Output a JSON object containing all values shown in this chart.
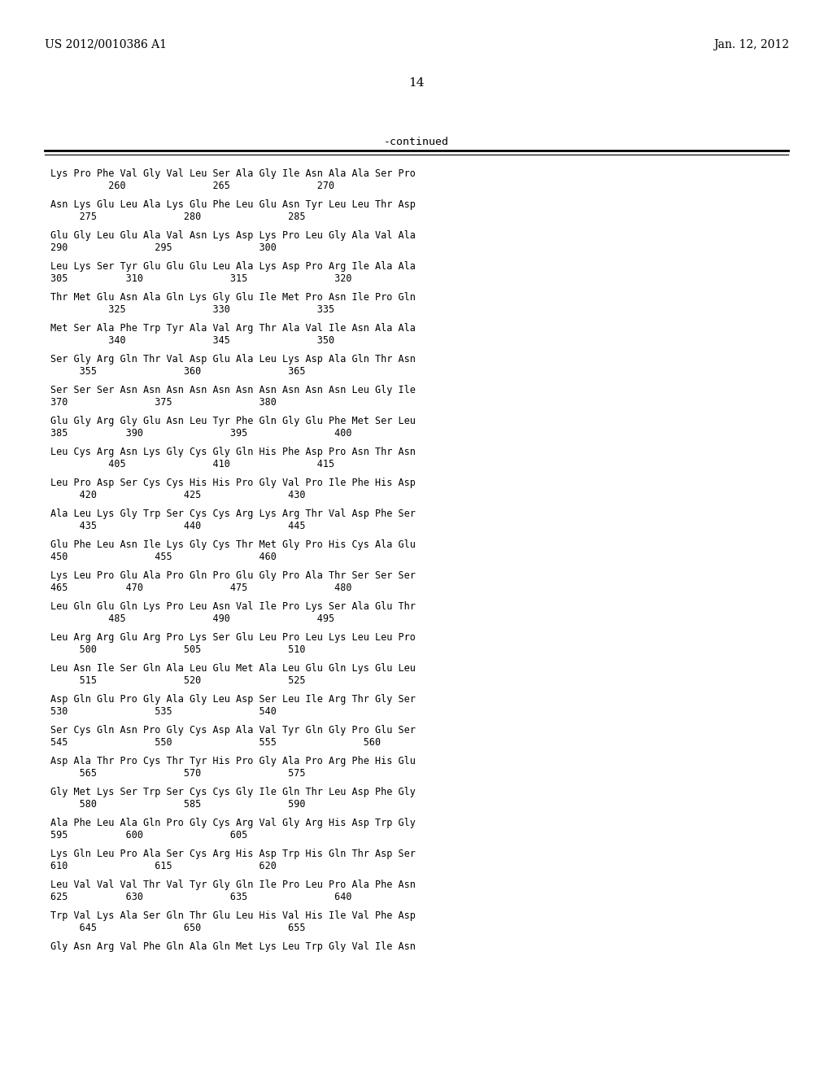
{
  "header_left": "US 2012/0010386 A1",
  "header_right": "Jan. 12, 2012",
  "page_number": "14",
  "continued_label": "-continued",
  "background_color": "#ffffff",
  "text_color": "#000000",
  "sequence_blocks": [
    {
      "seq": "Lys Pro Phe Val Gly Val Leu Ser Ala Gly Ile Asn Ala Ala Ser Pro",
      "nums": "          260               265               270"
    },
    {
      "seq": "Asn Lys Glu Leu Ala Lys Glu Phe Leu Glu Asn Tyr Leu Leu Thr Asp",
      "nums": "     275               280               285"
    },
    {
      "seq": "Glu Gly Leu Glu Ala Val Asn Lys Asp Lys Pro Leu Gly Ala Val Ala",
      "nums": "290               295               300"
    },
    {
      "seq": "Leu Lys Ser Tyr Glu Glu Glu Leu Ala Lys Asp Pro Arg Ile Ala Ala",
      "nums": "305          310               315               320"
    },
    {
      "seq": "Thr Met Glu Asn Ala Gln Lys Gly Glu Ile Met Pro Asn Ile Pro Gln",
      "nums": "          325               330               335"
    },
    {
      "seq": "Met Ser Ala Phe Trp Tyr Ala Val Arg Thr Ala Val Ile Asn Ala Ala",
      "nums": "          340               345               350"
    },
    {
      "seq": "Ser Gly Arg Gln Thr Val Asp Glu Ala Leu Lys Asp Ala Gln Thr Asn",
      "nums": "     355               360               365"
    },
    {
      "seq": "Ser Ser Ser Asn Asn Asn Asn Asn Asn Asn Asn Asn Asn Leu Gly Ile",
      "nums": "370               375               380"
    },
    {
      "seq": "Glu Gly Arg Gly Glu Asn Leu Tyr Phe Gln Gly Glu Phe Met Ser Leu",
      "nums": "385          390               395               400"
    },
    {
      "seq": "Leu Cys Arg Asn Lys Gly Cys Gly Gln His Phe Asp Pro Asn Thr Asn",
      "nums": "          405               410               415"
    },
    {
      "seq": "Leu Pro Asp Ser Cys Cys His His Pro Gly Val Pro Ile Phe His Asp",
      "nums": "     420               425               430"
    },
    {
      "seq": "Ala Leu Lys Gly Trp Ser Cys Cys Arg Lys Arg Thr Val Asp Phe Ser",
      "nums": "     435               440               445"
    },
    {
      "seq": "Glu Phe Leu Asn Ile Lys Gly Cys Thr Met Gly Pro His Cys Ala Glu",
      "nums": "450               455               460"
    },
    {
      "seq": "Lys Leu Pro Glu Ala Pro Gln Pro Glu Gly Pro Ala Thr Ser Ser Ser",
      "nums": "465          470               475               480"
    },
    {
      "seq": "Leu Gln Glu Gln Lys Pro Leu Asn Val Ile Pro Lys Ser Ala Glu Thr",
      "nums": "          485               490               495"
    },
    {
      "seq": "Leu Arg Arg Glu Arg Pro Lys Ser Glu Leu Pro Leu Lys Leu Leu Pro",
      "nums": "     500               505               510"
    },
    {
      "seq": "Leu Asn Ile Ser Gln Ala Leu Glu Met Ala Leu Glu Gln Lys Glu Leu",
      "nums": "     515               520               525"
    },
    {
      "seq": "Asp Gln Glu Pro Gly Ala Gly Leu Asp Ser Leu Ile Arg Thr Gly Ser",
      "nums": "530               535               540"
    },
    {
      "seq": "Ser Cys Gln Asn Pro Gly Cys Asp Ala Val Tyr Gln Gly Pro Glu Ser",
      "nums": "545               550               555               560"
    },
    {
      "seq": "Asp Ala Thr Pro Cys Thr Tyr His Pro Gly Ala Pro Arg Phe His Glu",
      "nums": "     565               570               575"
    },
    {
      "seq": "Gly Met Lys Ser Trp Ser Cys Cys Gly Ile Gln Thr Leu Asp Phe Gly",
      "nums": "     580               585               590"
    },
    {
      "seq": "Ala Phe Leu Ala Gln Pro Gly Cys Arg Val Gly Arg His Asp Trp Gly",
      "nums": "595          600               605"
    },
    {
      "seq": "Lys Gln Leu Pro Ala Ser Cys Arg His Asp Trp His Gln Thr Asp Ser",
      "nums": "610               615               620"
    },
    {
      "seq": "Leu Val Val Val Thr Val Tyr Gly Gln Ile Pro Leu Pro Ala Phe Asn",
      "nums": "625          630               635               640"
    },
    {
      "seq": "Trp Val Lys Ala Ser Gln Thr Glu Leu His Val His Ile Val Phe Asp",
      "nums": "     645               650               655"
    },
    {
      "seq": "Gly Asn Arg Val Phe Gln Ala Gln Met Lys Leu Trp Gly Val Ile Asn",
      "nums": ""
    }
  ]
}
